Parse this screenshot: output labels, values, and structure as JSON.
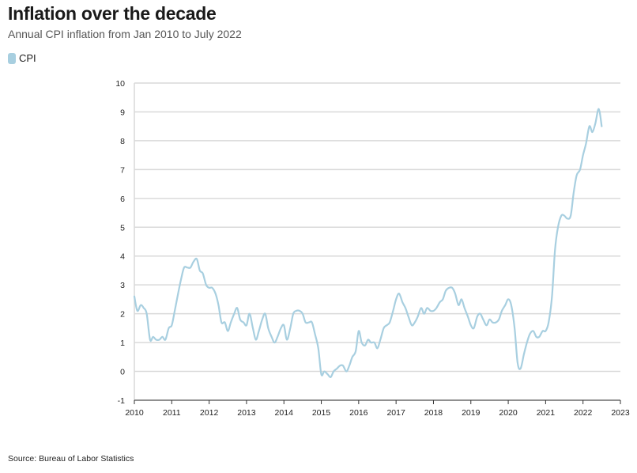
{
  "title": "Inflation over the decade",
  "subtitle": "Annual CPI inflation from Jan 2010 to July 2022",
  "source": "Source: Bureau of Labor Statistics",
  "colors": {
    "line": "#a8cfe0",
    "grid": "#d9d9d9",
    "axis": "#333333"
  },
  "chart_data": {
    "type": "line",
    "title": "Inflation over the decade",
    "subtitle": "Annual CPI inflation from Jan 2010 to July 2022",
    "xlabel": "",
    "ylabel": "",
    "xlim": [
      2010,
      2023
    ],
    "ylim": [
      -1,
      10
    ],
    "x_ticks": [
      "2010",
      "2011",
      "2012",
      "2013",
      "2014",
      "2015",
      "2016",
      "2017",
      "2018",
      "2019",
      "2020",
      "2021",
      "2022",
      "2023"
    ],
    "y_ticks": [
      "-1",
      "0",
      "1",
      "2",
      "3",
      "4",
      "5",
      "6",
      "7",
      "8",
      "9",
      "10"
    ],
    "grid": true,
    "legend": "top-left",
    "series": [
      {
        "name": "CPI",
        "color": "#a8cfe0",
        "x": [
          2010.0,
          2010.08,
          2010.17,
          2010.25,
          2010.33,
          2010.42,
          2010.5,
          2010.58,
          2010.67,
          2010.75,
          2010.83,
          2010.92,
          2011.0,
          2011.08,
          2011.17,
          2011.25,
          2011.33,
          2011.42,
          2011.5,
          2011.58,
          2011.67,
          2011.75,
          2011.83,
          2011.92,
          2012.0,
          2012.08,
          2012.17,
          2012.25,
          2012.33,
          2012.42,
          2012.5,
          2012.58,
          2012.67,
          2012.75,
          2012.83,
          2012.92,
          2013.0,
          2013.08,
          2013.17,
          2013.25,
          2013.33,
          2013.42,
          2013.5,
          2013.58,
          2013.67,
          2013.75,
          2013.83,
          2013.92,
          2014.0,
          2014.08,
          2014.17,
          2014.25,
          2014.33,
          2014.42,
          2014.5,
          2014.58,
          2014.67,
          2014.75,
          2014.83,
          2014.92,
          2015.0,
          2015.08,
          2015.17,
          2015.25,
          2015.33,
          2015.42,
          2015.5,
          2015.58,
          2015.67,
          2015.75,
          2015.83,
          2015.92,
          2016.0,
          2016.08,
          2016.17,
          2016.25,
          2016.33,
          2016.42,
          2016.5,
          2016.58,
          2016.67,
          2016.75,
          2016.83,
          2016.92,
          2017.0,
          2017.08,
          2017.17,
          2017.25,
          2017.33,
          2017.42,
          2017.5,
          2017.58,
          2017.67,
          2017.75,
          2017.83,
          2017.92,
          2018.0,
          2018.08,
          2018.17,
          2018.25,
          2018.33,
          2018.42,
          2018.5,
          2018.58,
          2018.67,
          2018.75,
          2018.83,
          2018.92,
          2019.0,
          2019.08,
          2019.17,
          2019.25,
          2019.33,
          2019.42,
          2019.5,
          2019.58,
          2019.67,
          2019.75,
          2019.83,
          2019.92,
          2020.0,
          2020.08,
          2020.17,
          2020.25,
          2020.33,
          2020.42,
          2020.5,
          2020.58,
          2020.67,
          2020.75,
          2020.83,
          2020.92,
          2021.0,
          2021.08,
          2021.17,
          2021.25,
          2021.33,
          2021.42,
          2021.5,
          2021.58,
          2021.67,
          2021.75,
          2021.83,
          2021.92,
          2022.0,
          2022.08,
          2022.17,
          2022.25,
          2022.33,
          2022.42,
          2022.5
        ],
        "values": [
          2.6,
          2.1,
          2.3,
          2.2,
          2.0,
          1.1,
          1.2,
          1.1,
          1.1,
          1.2,
          1.1,
          1.5,
          1.6,
          2.1,
          2.7,
          3.2,
          3.6,
          3.6,
          3.6,
          3.8,
          3.9,
          3.5,
          3.4,
          3.0,
          2.9,
          2.9,
          2.7,
          2.3,
          1.7,
          1.7,
          1.4,
          1.7,
          2.0,
          2.2,
          1.8,
          1.7,
          1.6,
          2.0,
          1.5,
          1.1,
          1.4,
          1.8,
          2.0,
          1.5,
          1.2,
          1.0,
          1.2,
          1.5,
          1.6,
          1.1,
          1.5,
          2.0,
          2.1,
          2.1,
          2.0,
          1.7,
          1.7,
          1.7,
          1.3,
          0.8,
          -0.1,
          0.0,
          -0.1,
          -0.2,
          0.0,
          0.1,
          0.2,
          0.2,
          0.0,
          0.2,
          0.5,
          0.7,
          1.4,
          1.0,
          0.9,
          1.1,
          1.0,
          1.0,
          0.8,
          1.1,
          1.5,
          1.6,
          1.7,
          2.1,
          2.5,
          2.7,
          2.4,
          2.2,
          1.9,
          1.6,
          1.7,
          1.9,
          2.2,
          2.0,
          2.2,
          2.1,
          2.1,
          2.2,
          2.4,
          2.5,
          2.8,
          2.9,
          2.9,
          2.7,
          2.3,
          2.5,
          2.2,
          1.9,
          1.6,
          1.5,
          1.9,
          2.0,
          1.8,
          1.6,
          1.8,
          1.7,
          1.7,
          1.8,
          2.1,
          2.3,
          2.5,
          2.3,
          1.5,
          0.3,
          0.1,
          0.6,
          1.0,
          1.3,
          1.4,
          1.2,
          1.2,
          1.4,
          1.4,
          1.7,
          2.6,
          4.2,
          5.0,
          5.4,
          5.4,
          5.3,
          5.4,
          6.2,
          6.8,
          7.0,
          7.5,
          7.9,
          8.5,
          8.3,
          8.6,
          9.1,
          8.5
        ]
      }
    ]
  }
}
